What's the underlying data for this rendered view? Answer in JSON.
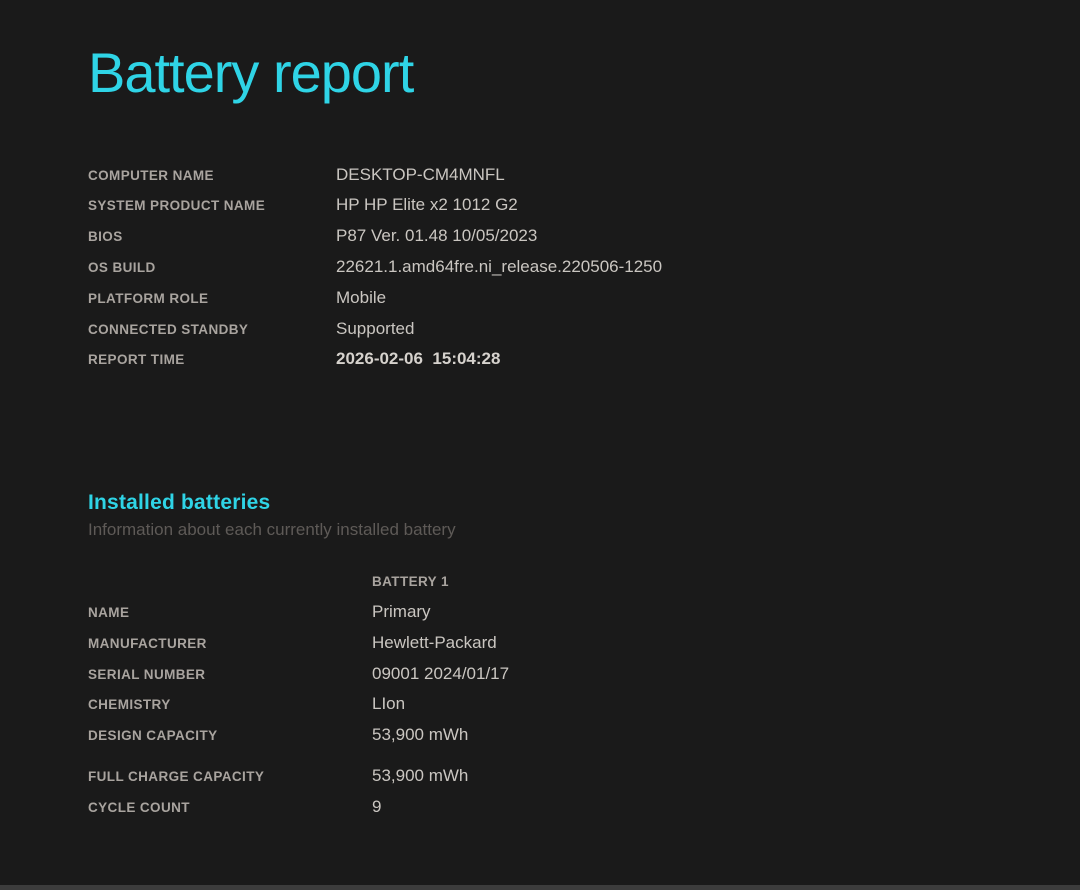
{
  "page": {
    "title": "Battery report",
    "colors": {
      "background": "#1a1a1a",
      "accent_cyan": "#2fd4e6",
      "label_gray": "#a9a49f",
      "value_gray": "#cac6c1",
      "muted_gray": "#5e5a57"
    }
  },
  "system_info": {
    "rows": [
      {
        "label": "COMPUTER NAME",
        "value": "DESKTOP-CM4MNFL"
      },
      {
        "label": "SYSTEM PRODUCT NAME",
        "value": "HP HP Elite x2 1012 G2"
      },
      {
        "label": "BIOS",
        "value": "P87 Ver. 01.48 10/05/2023"
      },
      {
        "label": "OS BUILD",
        "value": "22621.1.amd64fre.ni_release.220506-1250"
      },
      {
        "label": "PLATFORM ROLE",
        "value": "Mobile"
      },
      {
        "label": "CONNECTED STANDBY",
        "value": "Supported"
      },
      {
        "label": "REPORT TIME",
        "value": "2026-02-06  15:04:28"
      }
    ]
  },
  "installed_batteries": {
    "heading": "Installed batteries",
    "subtitle": "Information about each currently installed battery",
    "column_header": "BATTERY 1",
    "rows": [
      {
        "label": "NAME",
        "value": "Primary"
      },
      {
        "label": "MANUFACTURER",
        "value": "Hewlett-Packard"
      },
      {
        "label": "SERIAL NUMBER",
        "value": "09001 2024/01/17"
      },
      {
        "label": "CHEMISTRY",
        "value": "LIon"
      },
      {
        "label": "DESIGN CAPACITY",
        "value": "53,900 mWh"
      },
      {
        "label": "FULL CHARGE CAPACITY",
        "value": "53,900 mWh"
      },
      {
        "label": "CYCLE COUNT",
        "value": "9"
      }
    ]
  }
}
